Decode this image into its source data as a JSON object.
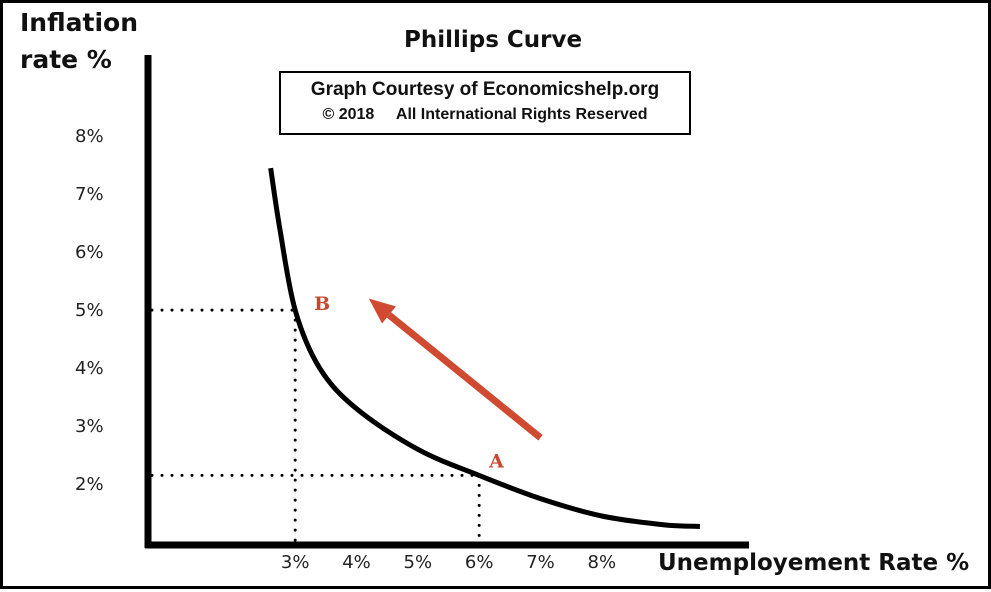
{
  "colors": {
    "curve": "#000000",
    "arrow": "#d04a32",
    "point_labels": "#c8472f"
  },
  "chart_data": {
    "type": "line",
    "title": "Phillips Curve",
    "credit": {
      "line1": "Graph Courtesy of Economicshelp.org",
      "line2": "© 2018     All International Rights Reserved"
    },
    "ylabel": [
      "Inflation",
      "rate %"
    ],
    "xlabel": "Unemployement Rate %",
    "x_ticks": [
      {
        "value": 3,
        "label": "3%"
      },
      {
        "value": 4,
        "label": "4%"
      },
      {
        "value": 5,
        "label": "5%"
      },
      {
        "value": 6,
        "label": "6%"
      },
      {
        "value": 7,
        "label": "7%"
      },
      {
        "value": 8,
        "label": "8%"
      }
    ],
    "y_ticks": [
      {
        "value": 2,
        "label": "2%"
      },
      {
        "value": 3,
        "label": "3%"
      },
      {
        "value": 4,
        "label": "4%"
      },
      {
        "value": 5,
        "label": "5%"
      },
      {
        "value": 6,
        "label": "6%"
      },
      {
        "value": 7,
        "label": "7%"
      },
      {
        "value": 8,
        "label": "8%"
      }
    ],
    "xlim": [
      0.6,
      10.4
    ],
    "ylim": [
      0.95,
      9.4
    ],
    "grid": false,
    "curve": [
      {
        "x": 2.6,
        "y": 7.45
      },
      {
        "x": 2.75,
        "y": 6.4
      },
      {
        "x": 3.0,
        "y": 5.0
      },
      {
        "x": 3.4,
        "y": 4.0
      },
      {
        "x": 4.0,
        "y": 3.3
      },
      {
        "x": 5.0,
        "y": 2.6
      },
      {
        "x": 6.0,
        "y": 2.15
      },
      {
        "x": 7.0,
        "y": 1.75
      },
      {
        "x": 8.0,
        "y": 1.45
      },
      {
        "x": 9.0,
        "y": 1.3
      },
      {
        "x": 9.6,
        "y": 1.27
      }
    ],
    "points": [
      {
        "label": "B",
        "x": 3.0,
        "y": 5.0
      },
      {
        "label": "A",
        "x": 6.0,
        "y": 2.15
      }
    ],
    "arrow": {
      "from": {
        "x": 7.0,
        "y": 2.8
      },
      "to": {
        "x": 4.2,
        "y": 5.2
      }
    }
  }
}
